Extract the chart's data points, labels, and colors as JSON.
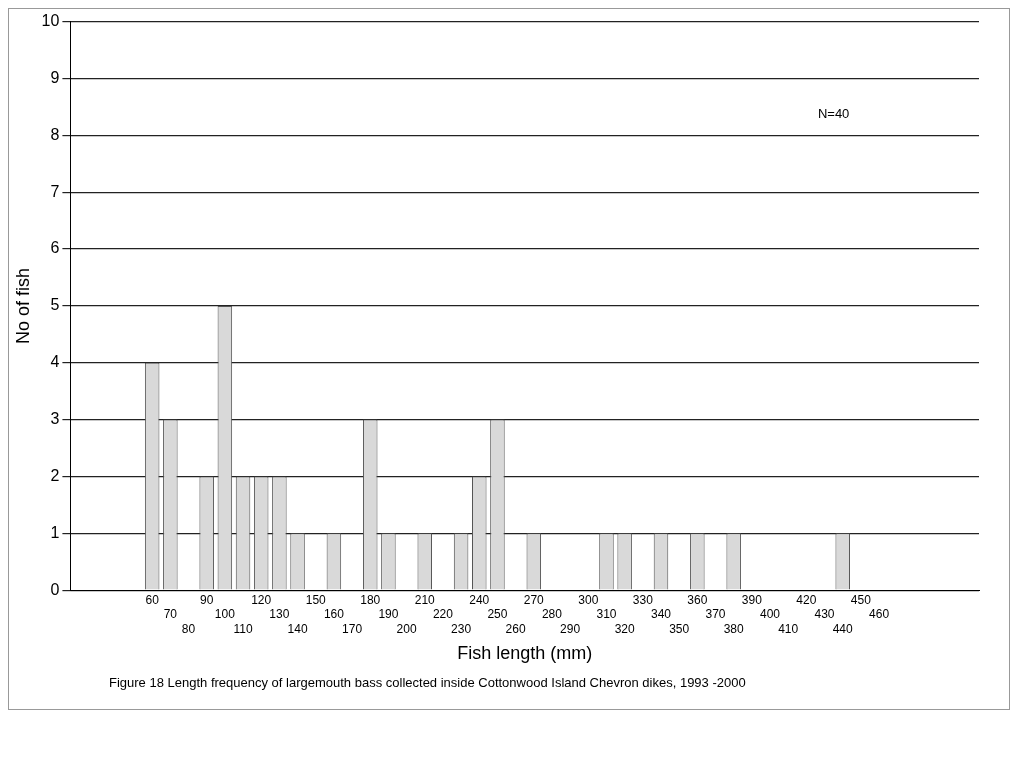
{
  "chart_data": {
    "type": "bar",
    "xlabel": "Fish length (mm)",
    "ylabel": "No of fish",
    "categories": [
      null,
      null,
      null,
      null,
      "60",
      "70",
      "80",
      "90",
      "100",
      "110",
      "120",
      "130",
      "140",
      "150",
      "160",
      "170",
      "180",
      "190",
      "200",
      "210",
      "220",
      "230",
      "240",
      "250",
      "260",
      "270",
      "280",
      "290",
      "300",
      "310",
      "320",
      "330",
      "340",
      "350",
      "360",
      "370",
      "380",
      "390",
      "400",
      "410",
      "420",
      "430",
      "440",
      "450",
      "460",
      null,
      null,
      null,
      null,
      null
    ],
    "values": [
      0,
      0,
      0,
      0,
      4,
      3,
      0,
      2,
      5,
      2,
      2,
      2,
      1,
      0,
      1,
      0,
      3,
      1,
      0,
      1,
      0,
      1,
      2,
      3,
      0,
      1,
      0,
      0,
      0,
      1,
      1,
      0,
      1,
      0,
      1,
      0,
      1,
      0,
      0,
      0,
      0,
      0,
      1,
      0,
      0,
      0,
      0,
      0,
      0,
      0
    ],
    "color": "#d9d9d9",
    "ylim": [
      0,
      10
    ],
    "yticks": [
      0,
      1,
      2,
      3,
      4,
      5,
      6,
      7,
      8,
      9,
      10
    ],
    "grid": "y",
    "legend": false,
    "annotations": [
      "N=40",
      "Figure 18   Length frequency of largemouth bass collected inside Cottonwood Island Chevron dikes, 1993 -2000"
    ]
  }
}
